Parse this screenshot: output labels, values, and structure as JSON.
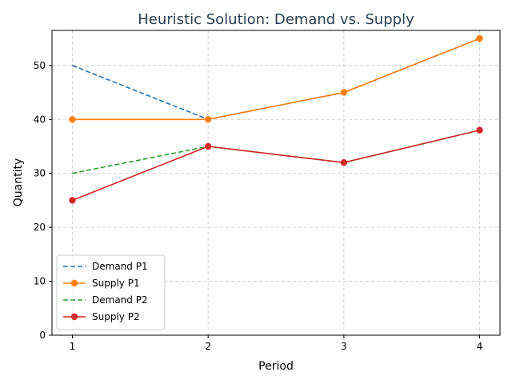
{
  "chart_data": {
    "type": "line",
    "title": "Heuristic Solution: Demand vs. Supply",
    "xlabel": "Period",
    "ylabel": "Quantity",
    "x": [
      1,
      2,
      3,
      4
    ],
    "xlim": [
      0.85,
      4.15
    ],
    "ylim": [
      0,
      56.5
    ],
    "xticks": [
      1,
      2,
      3,
      4
    ],
    "yticks": [
      0,
      10,
      20,
      30,
      40,
      50
    ],
    "grid": true,
    "legend_position": "lower-left",
    "series": [
      {
        "name": "Demand P1",
        "values": [
          50,
          40,
          45,
          55
        ],
        "color": "#1f77b4",
        "style": "dashed",
        "marker": false
      },
      {
        "name": "Supply P1",
        "values": [
          40,
          40,
          45,
          55
        ],
        "color": "#ff7f0e",
        "style": "solid",
        "marker": true
      },
      {
        "name": "Demand P2",
        "values": [
          30,
          35,
          32,
          38
        ],
        "color": "#2ca02c",
        "style": "dashed",
        "marker": false
      },
      {
        "name": "Supply P2",
        "values": [
          25,
          35,
          32,
          38
        ],
        "color": "#d62728",
        "style": "solid",
        "marker": true
      }
    ]
  }
}
